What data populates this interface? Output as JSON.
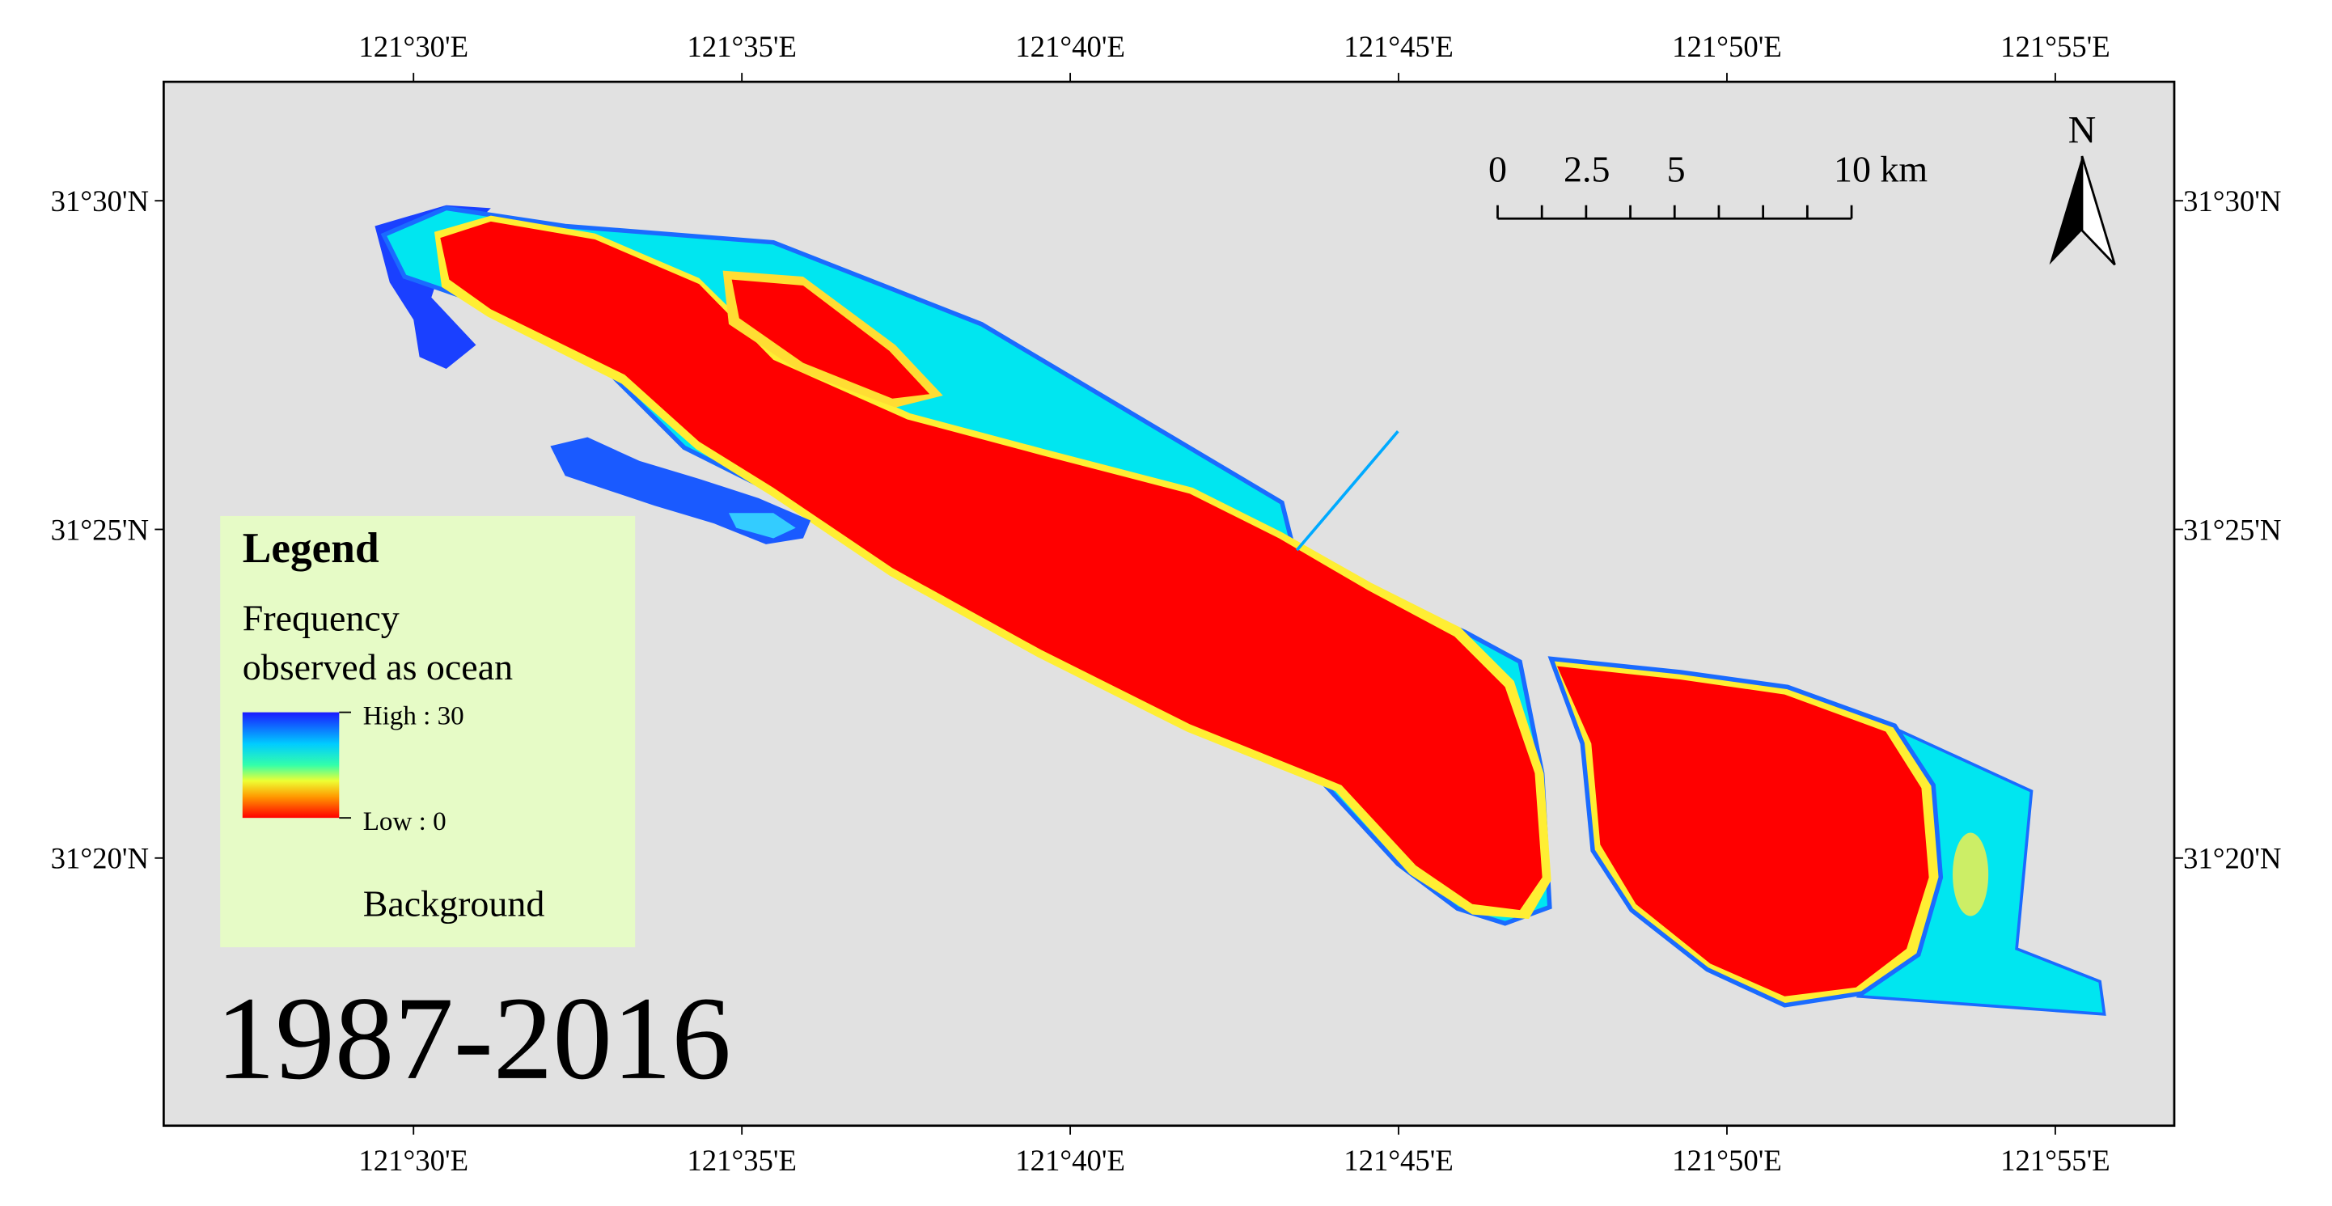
{
  "map": {
    "top_labels": [
      "121°30'E",
      "121°35'E",
      "121°40'E",
      "121°45'E",
      "121°50'E",
      "121°55'E"
    ],
    "bottom_labels": [
      "121°30'E",
      "121°35'E",
      "121°40'E",
      "121°45'E",
      "121°50'E",
      "121°55'E"
    ],
    "left_labels": [
      "31°30'N",
      "31°25'N",
      "31°20'N"
    ],
    "right_labels": [
      "31°30'N",
      "31°25'N",
      "31°20'N"
    ],
    "scale_bar": {
      "labels": [
        "0",
        "2.5",
        "5",
        "10 km"
      ]
    },
    "north_arrow": "N",
    "legend": {
      "title": "Legend",
      "subtitle_line1": "Frequency",
      "subtitle_line2": "observed  as ocean",
      "high_label": "High : 30",
      "low_label": "Low : 0",
      "background_label": "Background"
    },
    "period": "1987-2016"
  }
}
